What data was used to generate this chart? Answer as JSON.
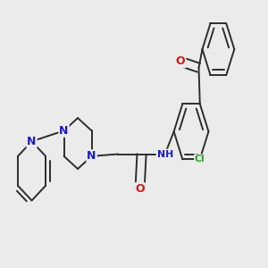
{
  "bg_color": "#ebebeb",
  "bond_color": "#2d2d2d",
  "bond_width": 1.4,
  "figsize": [
    3.0,
    3.0
  ],
  "dpi": 100,
  "colors": {
    "N": "#1a1acc",
    "O": "#cc1a1a",
    "Cl": "#1aaa1a",
    "C": "#2d2d2d"
  },
  "font_size": 9.0,
  "font_size_sm": 7.8
}
